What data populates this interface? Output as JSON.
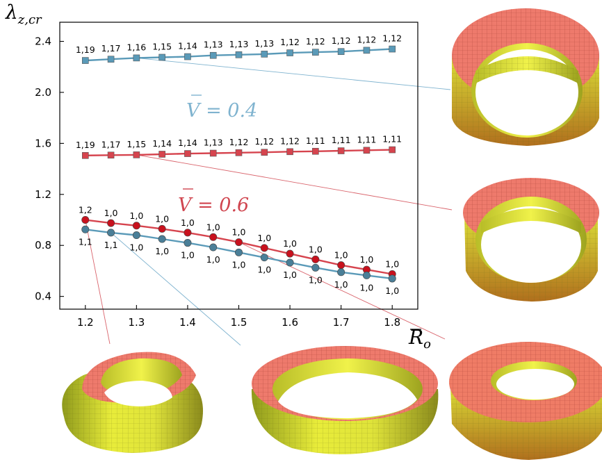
{
  "chart_data": {
    "type": "line",
    "ylabel": "λ",
    "ylabel_sub": "z,cr",
    "xlabel": "R",
    "xlabel_sub": "o",
    "xlim": [
      1.15,
      1.85
    ],
    "ylim": [
      0.3,
      2.55
    ],
    "x_ticks": [
      "1.2",
      "1.3",
      "1.4",
      "1.5",
      "1.6",
      "1.7",
      "1.8"
    ],
    "y_ticks": [
      "0.4",
      "0.8",
      "1.2",
      "1.6",
      "2.0",
      "2.4"
    ],
    "x": [
      1.2,
      1.25,
      1.3,
      1.35,
      1.4,
      1.45,
      1.5,
      1.55,
      1.6,
      1.65,
      1.7,
      1.75,
      1.8
    ],
    "annotations": [
      {
        "text": "V = 0.4",
        "color": "#7fb3cf"
      },
      {
        "text": "V = 0.6",
        "color": "#d0454f"
      }
    ],
    "series": [
      {
        "id": "upper-blue",
        "color": "#5a9ab8",
        "marker": "square",
        "values": [
          2.25,
          2.26,
          2.27,
          2.275,
          2.28,
          2.29,
          2.295,
          2.3,
          2.31,
          2.315,
          2.32,
          2.33,
          2.34
        ],
        "labels": [
          "1,19",
          "1,17",
          "1,16",
          "1,15",
          "1,14",
          "1,13",
          "1,13",
          "1,13",
          "1,12",
          "1,12",
          "1,12",
          "1,12",
          "1,12"
        ]
      },
      {
        "id": "upper-red",
        "color": "#d6444e",
        "marker": "square",
        "values": [
          1.505,
          1.508,
          1.51,
          1.515,
          1.52,
          1.523,
          1.527,
          1.53,
          1.535,
          1.538,
          1.542,
          1.546,
          1.55
        ],
        "labels": [
          "1,19",
          "1,17",
          "1,15",
          "1,14",
          "1,14",
          "1,13",
          "1,12",
          "1,12",
          "1,12",
          "1,11",
          "1,11",
          "1,11",
          "1,11"
        ]
      },
      {
        "id": "lower-red",
        "color": "#d6444e",
        "marker": "circle",
        "values": [
          1.0,
          0.975,
          0.955,
          0.93,
          0.9,
          0.865,
          0.825,
          0.78,
          0.735,
          0.69,
          0.645,
          0.61,
          0.575
        ],
        "labels": [
          "1,2",
          "1,0",
          "1,0",
          "1,0",
          "1,0",
          "1,0",
          "1,0",
          "1,0",
          "1,0",
          "1,0",
          "1,0",
          "1,0",
          "1,0"
        ]
      },
      {
        "id": "lower-blue",
        "color": "#5a9ab8",
        "marker": "circle",
        "values": [
          0.925,
          0.9,
          0.88,
          0.85,
          0.82,
          0.785,
          0.745,
          0.705,
          0.665,
          0.625,
          0.59,
          0.565,
          0.54
        ],
        "labels": [
          "1,1",
          "1,1",
          "1,0",
          "1,0",
          "1,0",
          "1,0",
          "1,0",
          "1,0",
          "1,0",
          "1,0",
          "1,0",
          "1,0",
          "1,0"
        ]
      }
    ]
  }
}
